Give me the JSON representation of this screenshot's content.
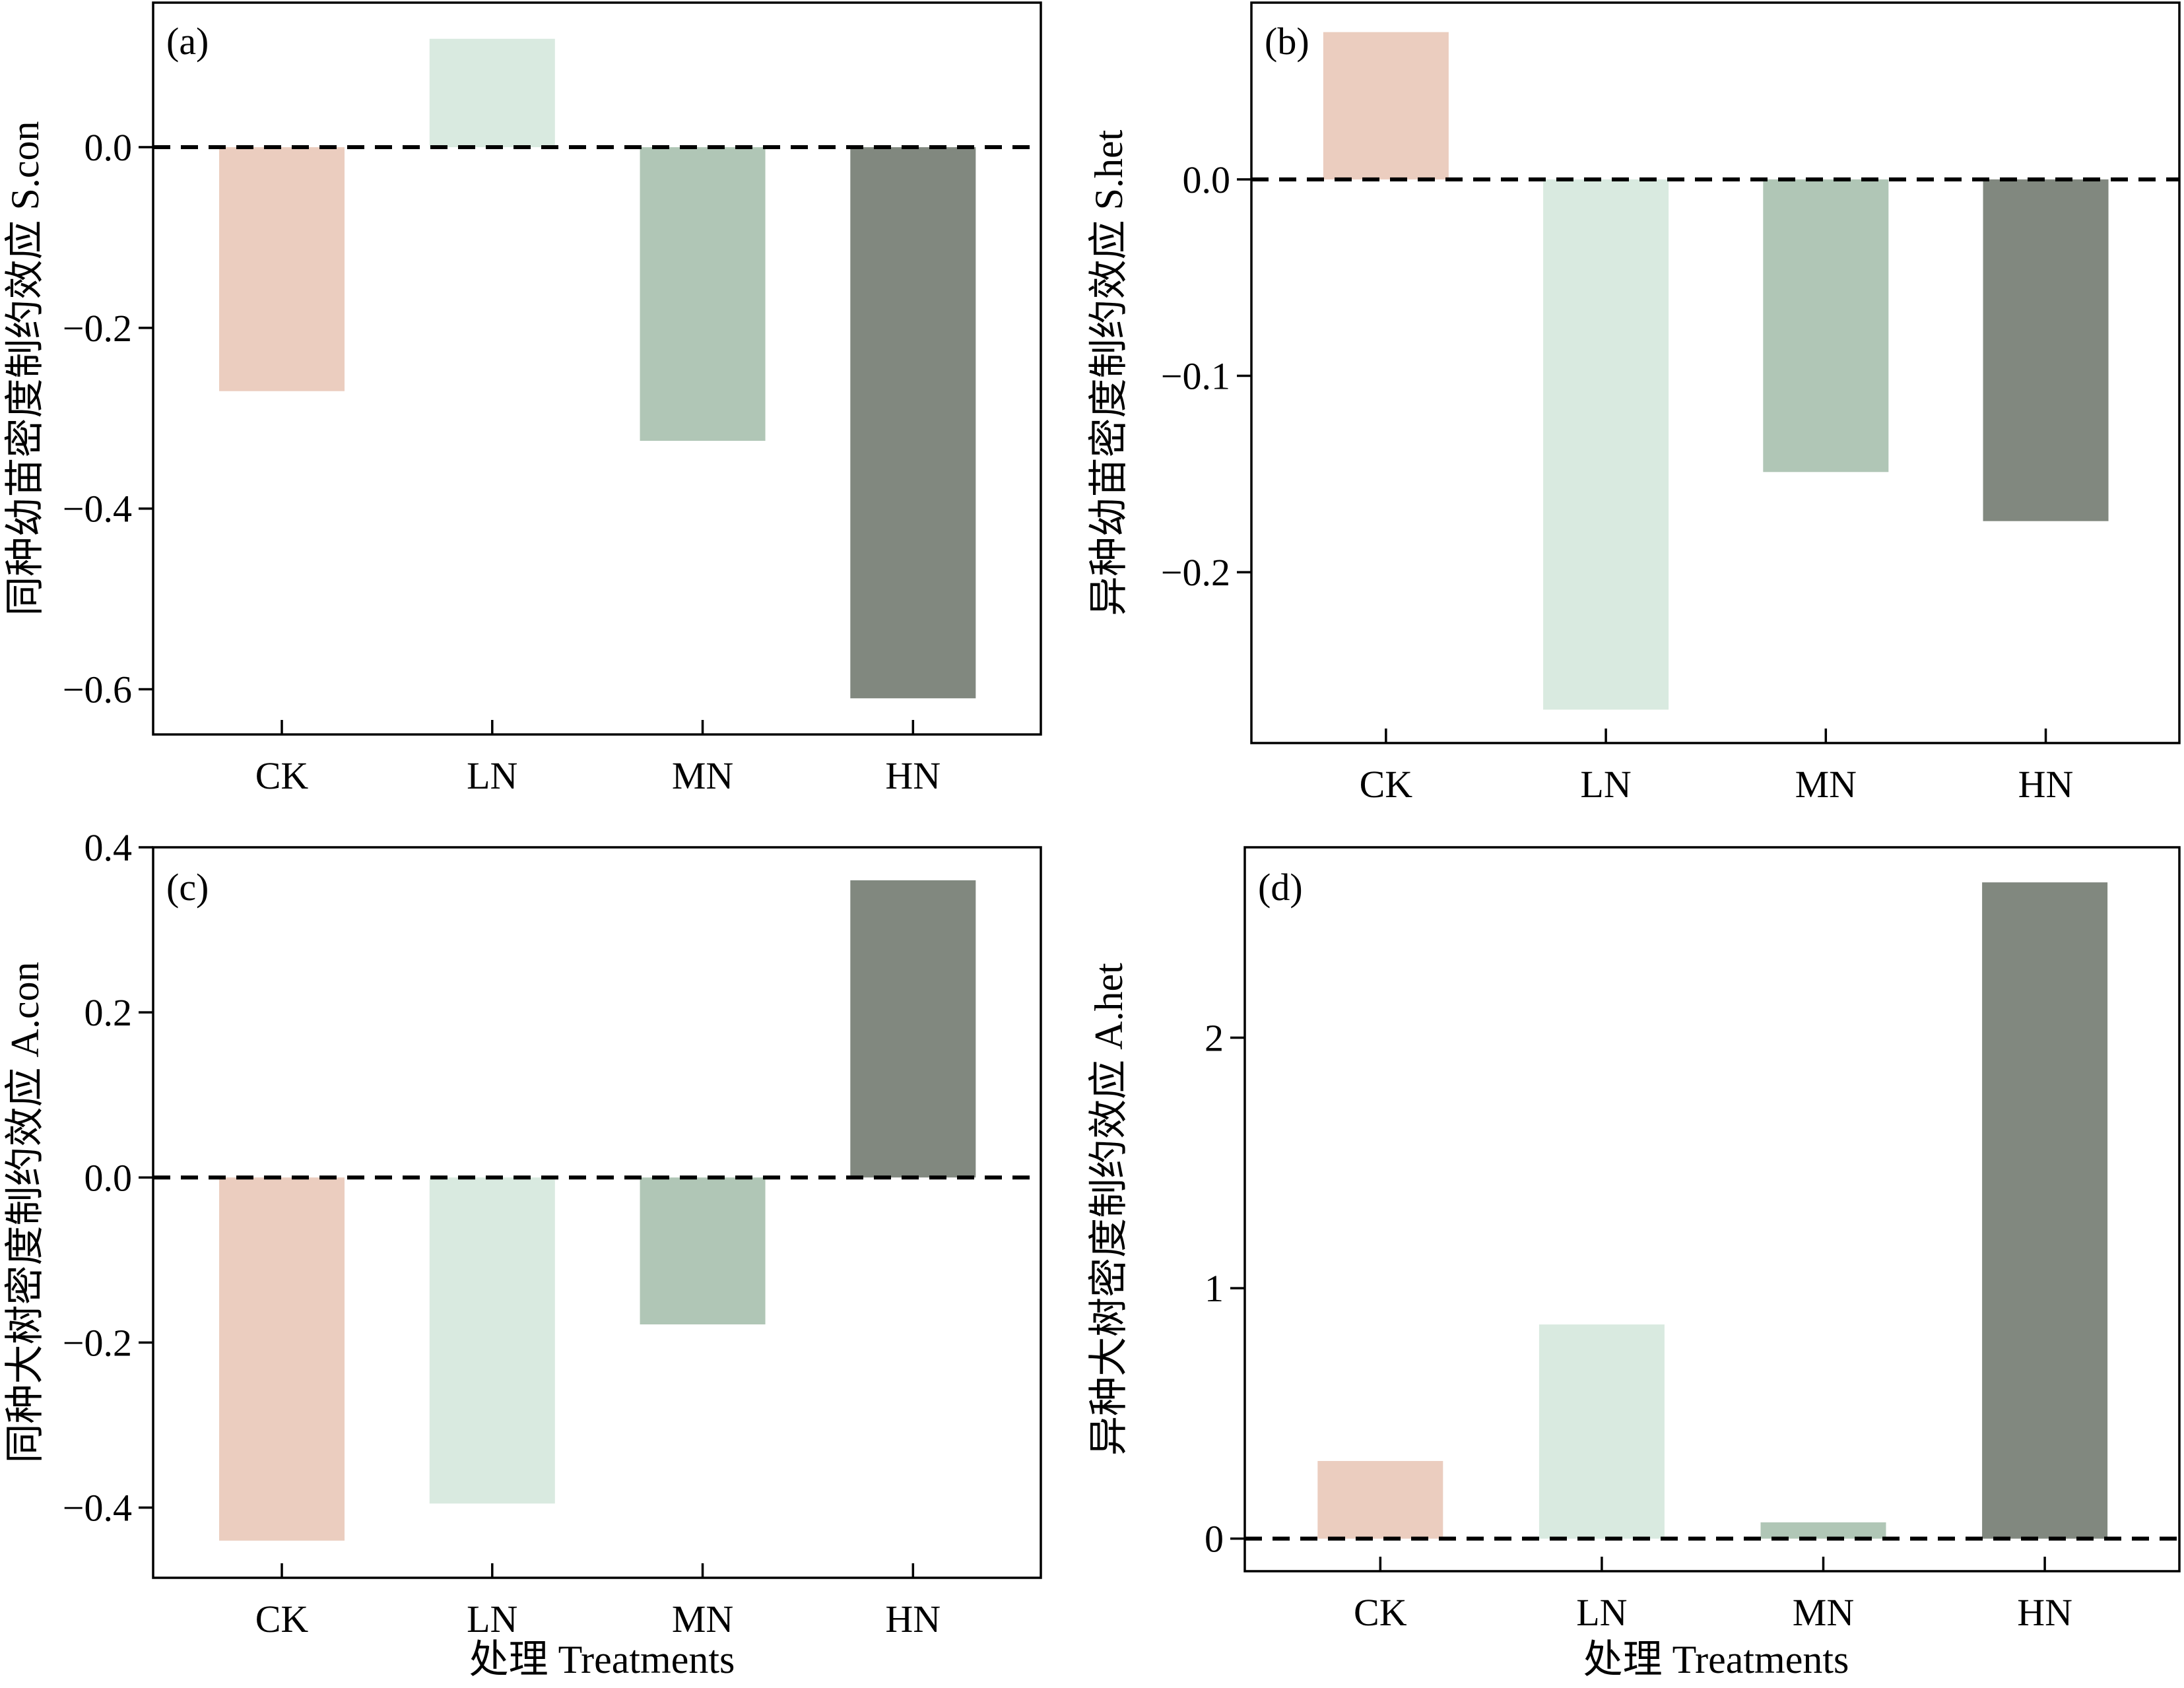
{
  "figure": {
    "xlabel": "处理 Treatments"
  },
  "colors": {
    "CK": "#ebcdbf",
    "LN": "#d9eae0",
    "MN": "#b0c6b6",
    "HN": "#81887f"
  },
  "chart_data": [
    {
      "type": "bar",
      "panel_label": "(a)",
      "ylabel": "同种幼苗密度制约效应 S.con",
      "categories": [
        "CK",
        "LN",
        "MN",
        "HN"
      ],
      "values": [
        -0.27,
        0.12,
        -0.325,
        -0.61
      ],
      "ylim": [
        -0.65,
        0.16
      ],
      "yticks": [
        0.0,
        -0.2,
        -0.4,
        -0.6
      ],
      "ytick_labels": [
        "0.0",
        "−0.2",
        "−0.4",
        "−0.6"
      ],
      "reference_line": 0,
      "grid": false,
      "legend": "none"
    },
    {
      "type": "bar",
      "panel_label": "(b)",
      "ylabel": "异种幼苗密度制约效应 S.het",
      "categories": [
        "CK",
        "LN",
        "MN",
        "HN"
      ],
      "values": [
        0.075,
        -0.27,
        -0.149,
        -0.174
      ],
      "ylim": [
        -0.287,
        0.09
      ],
      "yticks": [
        0.0,
        -0.1,
        -0.2
      ],
      "ytick_labels": [
        "0.0",
        "−0.1",
        "−0.2"
      ],
      "reference_line": 0,
      "grid": false,
      "legend": "none"
    },
    {
      "type": "bar",
      "panel_label": "(c)",
      "ylabel": "同种大树密度制约效应 A.con",
      "categories": [
        "CK",
        "LN",
        "MN",
        "HN"
      ],
      "values": [
        -0.44,
        -0.395,
        -0.178,
        0.36
      ],
      "ylim": [
        -0.485,
        0.4
      ],
      "yticks": [
        0.4,
        0.2,
        0.0,
        -0.2,
        -0.4
      ],
      "ytick_labels": [
        "0.4",
        "0.2",
        "0.0",
        "−0.2",
        "−0.4"
      ],
      "reference_line": 0,
      "grid": false,
      "legend": "none"
    },
    {
      "type": "bar",
      "panel_label": "(d)",
      "ylabel": "异种大树密度制约效应 A.het",
      "categories": [
        "CK",
        "LN",
        "MN",
        "HN"
      ],
      "values": [
        0.31,
        0.855,
        0.065,
        2.62
      ],
      "ylim": [
        -0.13,
        2.76
      ],
      "yticks": [
        0,
        1,
        2
      ],
      "ytick_labels": [
        "0",
        "1",
        "2"
      ],
      "reference_line": 0,
      "grid": false,
      "legend": "none"
    }
  ]
}
